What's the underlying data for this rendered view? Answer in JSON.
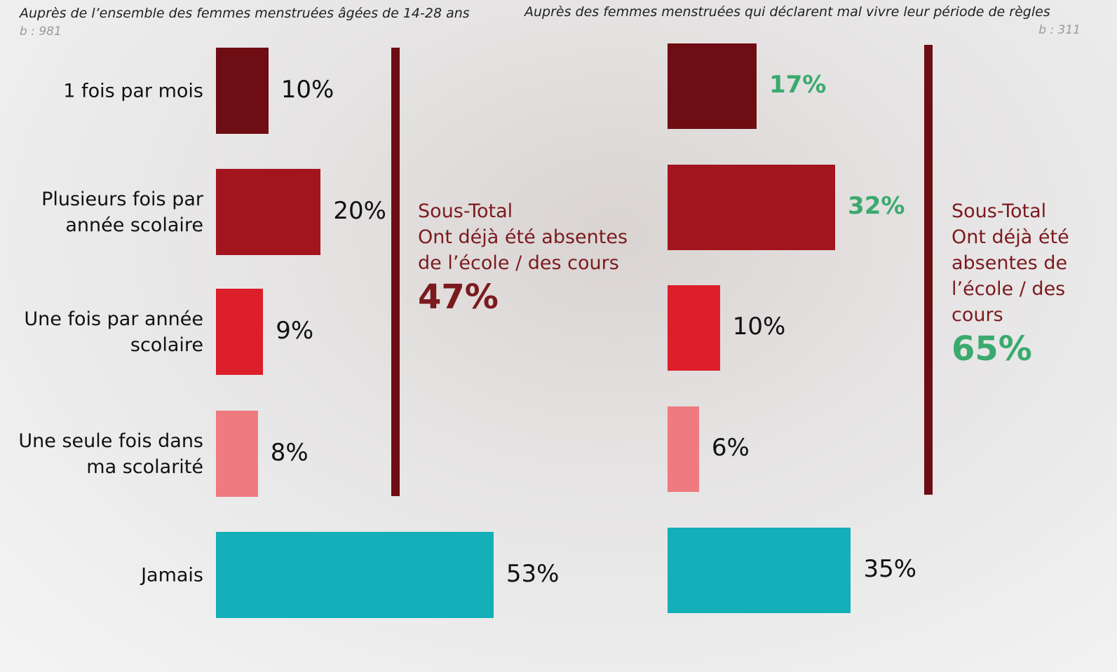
{
  "chart_data": [
    {
      "type": "hbar",
      "subtitle": "Auprès de l’ensemble des femmes menstruées âgées de 14-28 ans",
      "base": "b : 981",
      "categories": [
        "1 fois par mois",
        "Plusieurs fois par année scolaire",
        "Une fois par année scolaire",
        "Une seule fois dans ma scolarité",
        "Jamais"
      ],
      "values": [
        10,
        20,
        9,
        8,
        53
      ],
      "value_labels": [
        "10%",
        "20%",
        "9%",
        "8%",
        "53%"
      ],
      "colors": [
        "#6e0d13",
        "#a3151e",
        "#dc1f2a",
        "#ef7a80",
        "#14afb8"
      ],
      "value_label_colors": [
        "#111111",
        "#111111",
        "#111111",
        "#111111",
        "#111111"
      ],
      "subtotal": {
        "title": "Sous-Total",
        "text": "Ont déjà été absentes de l’école / des cours",
        "value": 47,
        "label": "47%",
        "color": "#7b1a1e"
      }
    },
    {
      "type": "hbar",
      "subtitle": "Auprès des femmes menstruées  qui déclarent mal vivre leur période de règles",
      "base": "b : 311",
      "values": [
        17,
        32,
        10,
        6,
        35
      ],
      "value_labels": [
        "17%",
        "32%",
        "10%",
        "6%",
        "35%"
      ],
      "colors": [
        "#6e0d13",
        "#a3151e",
        "#dc1f2a",
        "#ef7a80",
        "#14afb8"
      ],
      "value_label_colors": [
        "#3aaa6e",
        "#3aaa6e",
        "#111111",
        "#111111",
        "#111111"
      ],
      "subtotal": {
        "title": "Sous-Total",
        "text": "Ont déjà été absentes de l’école / des cours",
        "value": 65,
        "label": "65%",
        "color": "#3aaa6e"
      }
    }
  ]
}
